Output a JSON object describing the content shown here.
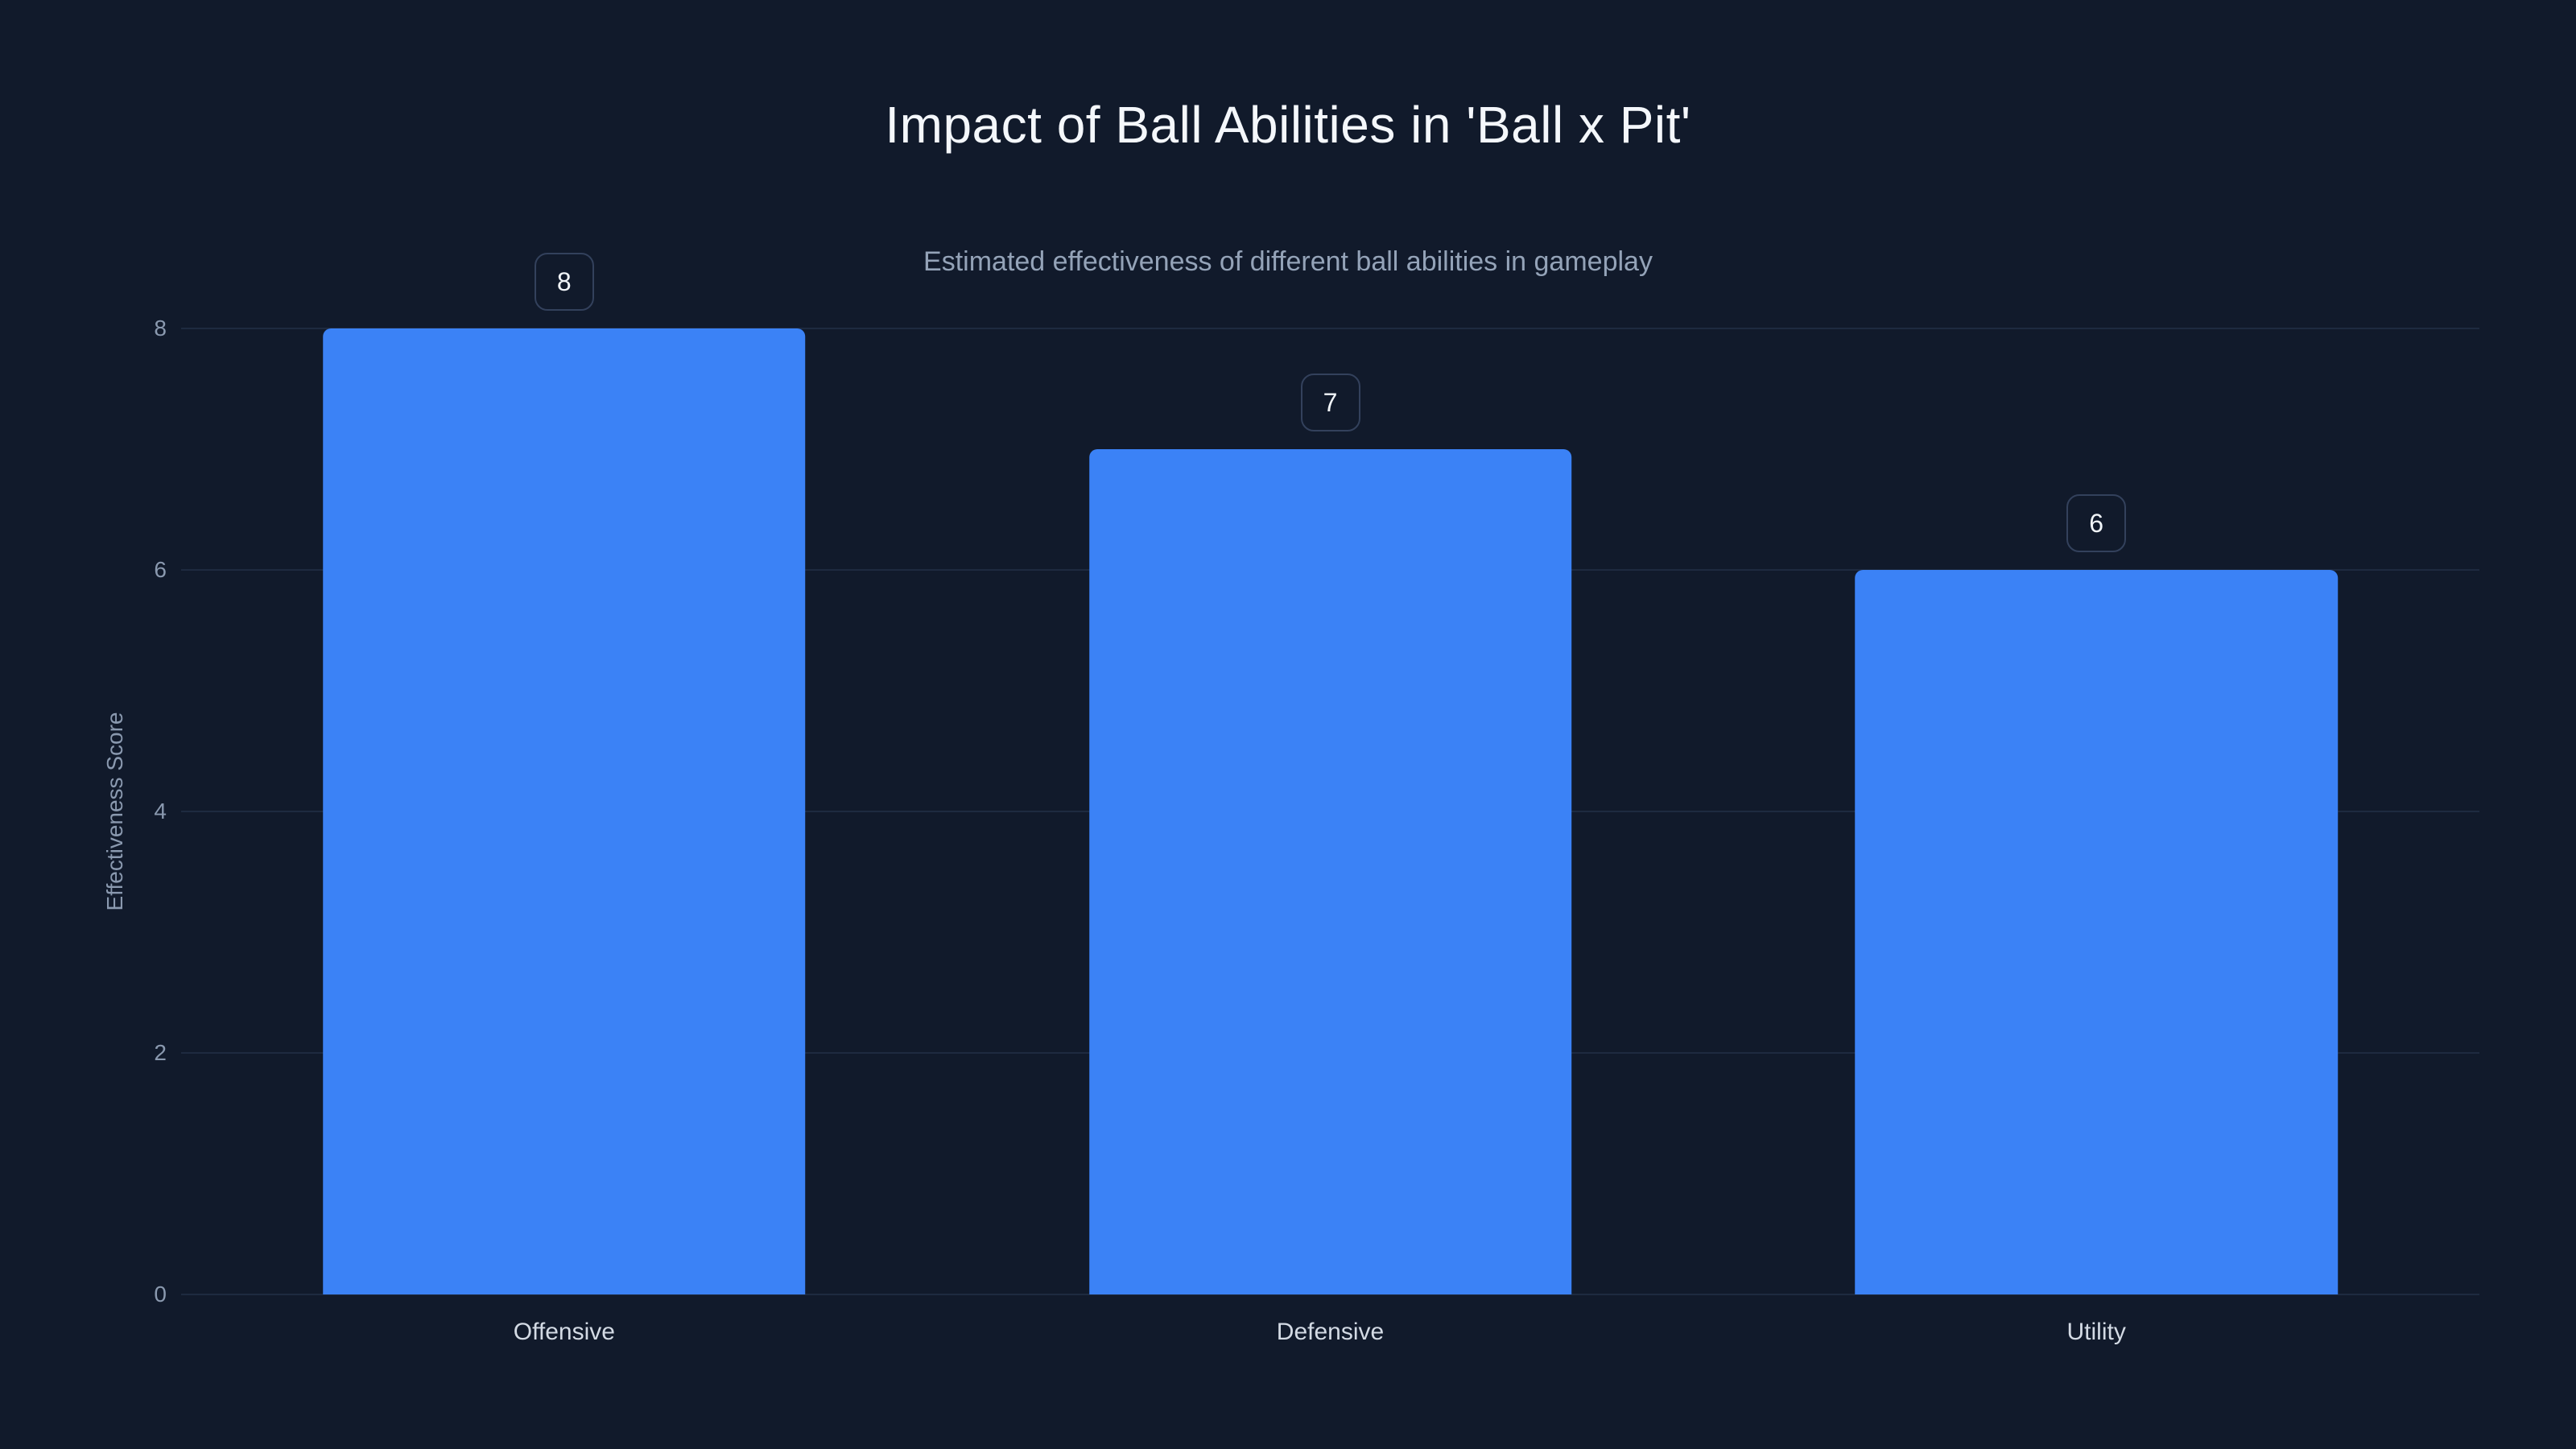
{
  "page": {
    "title": "Impact of Ball Abilities in 'Ball x Pit'",
    "subtitle": "Estimated effectiveness of different ball abilities in gameplay"
  },
  "chart_data": {
    "type": "bar",
    "title": "Impact of Ball Abilities in 'Ball x Pit'",
    "subtitle": "Estimated effectiveness of different ball abilities in gameplay",
    "categories": [
      "Offensive",
      "Defensive",
      "Utility"
    ],
    "values": [
      8,
      7,
      6
    ],
    "value_labels": [
      "8",
      "7",
      "6"
    ],
    "xlabel": "",
    "ylabel": "Effectiveness Score",
    "ylim": [
      0,
      8
    ],
    "yticks": [
      0,
      2,
      4,
      6,
      8
    ],
    "grid": true,
    "legend_position": "none",
    "colors": {
      "background": "#111a2b",
      "bar": "#3b82f6",
      "grid": "#1e2a40",
      "title_text": "#f4f7fb",
      "muted_text": "#94a3b8",
      "badge_border": "#33415c"
    }
  }
}
